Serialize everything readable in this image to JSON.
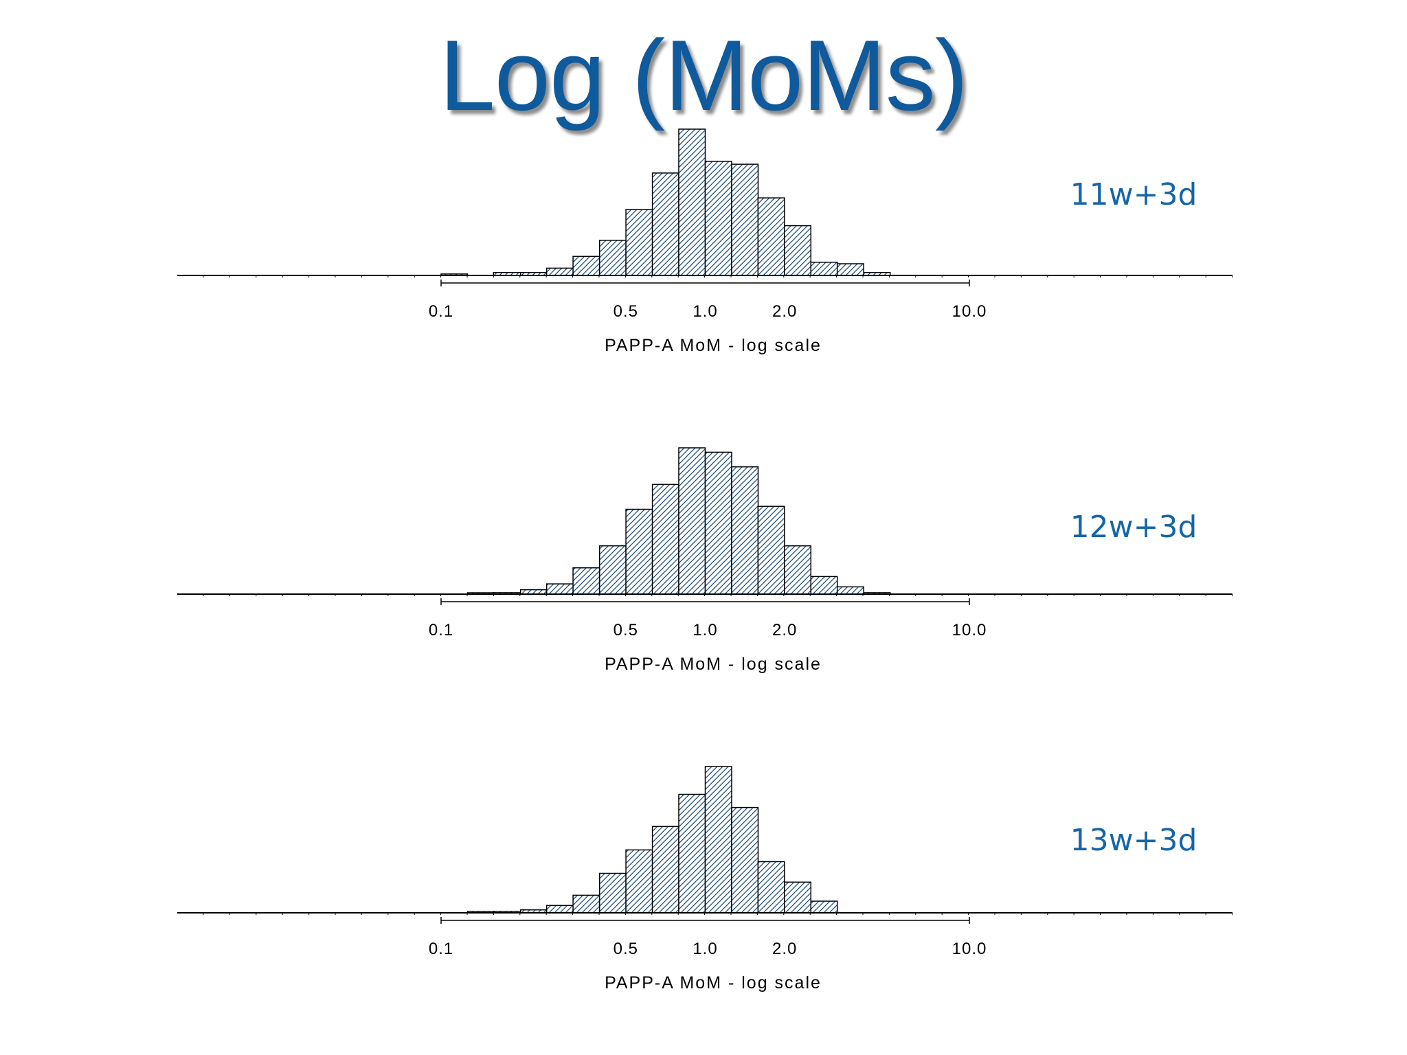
{
  "slide": {
    "title": "Log (MoMs)"
  },
  "colors": {
    "title": "#0e5a9c",
    "panel_label": "#1565a8",
    "bar_hatch": "#1f4e79",
    "bar_edge": "#000000",
    "axis": "#000000"
  },
  "chart_data": [
    {
      "type": "bar",
      "panel_label": "11w+3d",
      "xlabel": "PAPP-A MoM - log scale",
      "x_scale": "log",
      "xlim": [
        0.1,
        10.0
      ],
      "tick_values": [
        0.1,
        0.5,
        1.0,
        2.0,
        10.0
      ],
      "tick_labels": [
        "0.1",
        "0.5",
        "1.0",
        "2.0",
        "10.0"
      ],
      "bin_edges": [
        0.1,
        0.126,
        0.158,
        0.2,
        0.251,
        0.316,
        0.398,
        0.501,
        0.631,
        0.794,
        1.0,
        1.259,
        1.585,
        1.995,
        2.512,
        3.162,
        3.981,
        5.012,
        6.31,
        7.943,
        10.0
      ],
      "ylim": [
        0,
        100
      ],
      "values": [
        1,
        0,
        2,
        2,
        5,
        13,
        24,
        45,
        70,
        100,
        78,
        76,
        53,
        34,
        9,
        8,
        2,
        0,
        0,
        0
      ],
      "grid": false,
      "legend": "none"
    },
    {
      "type": "bar",
      "panel_label": "12w+3d",
      "xlabel": "PAPP-A MoM - log scale",
      "x_scale": "log",
      "xlim": [
        0.1,
        10.0
      ],
      "tick_values": [
        0.1,
        0.5,
        1.0,
        2.0,
        10.0
      ],
      "tick_labels": [
        "0.1",
        "0.5",
        "1.0",
        "2.0",
        "10.0"
      ],
      "bin_edges": [
        0.1,
        0.126,
        0.158,
        0.2,
        0.251,
        0.316,
        0.398,
        0.501,
        0.631,
        0.794,
        1.0,
        1.259,
        1.585,
        1.995,
        2.512,
        3.162,
        3.981,
        5.012,
        6.31,
        7.943,
        10.0
      ],
      "ylim": [
        0,
        100
      ],
      "values": [
        0,
        0.5,
        1,
        3,
        7,
        18,
        33,
        58,
        75,
        100,
        97,
        87,
        60,
        33,
        12,
        5,
        1,
        0,
        0,
        0
      ],
      "grid": false,
      "legend": "none"
    },
    {
      "type": "bar",
      "panel_label": "13w+3d",
      "xlabel": "PAPP-A MoM - log scale",
      "x_scale": "log",
      "xlim": [
        0.1,
        10.0
      ],
      "tick_values": [
        0.1,
        0.5,
        1.0,
        2.0,
        10.0
      ],
      "tick_labels": [
        "0.1",
        "0.5",
        "1.0",
        "2.0",
        "10.0"
      ],
      "bin_edges": [
        0.1,
        0.126,
        0.158,
        0.2,
        0.251,
        0.316,
        0.398,
        0.501,
        0.631,
        0.794,
        1.0,
        1.259,
        1.585,
        1.995,
        2.512,
        3.162,
        3.981,
        5.012,
        6.31,
        7.943,
        10.0
      ],
      "ylim": [
        0,
        100
      ],
      "values": [
        0,
        0.5,
        1,
        2,
        5,
        12,
        27,
        43,
        59,
        81,
        100,
        72,
        35,
        21,
        8,
        0,
        0,
        0,
        0,
        0
      ],
      "grid": false,
      "legend": "none"
    }
  ]
}
